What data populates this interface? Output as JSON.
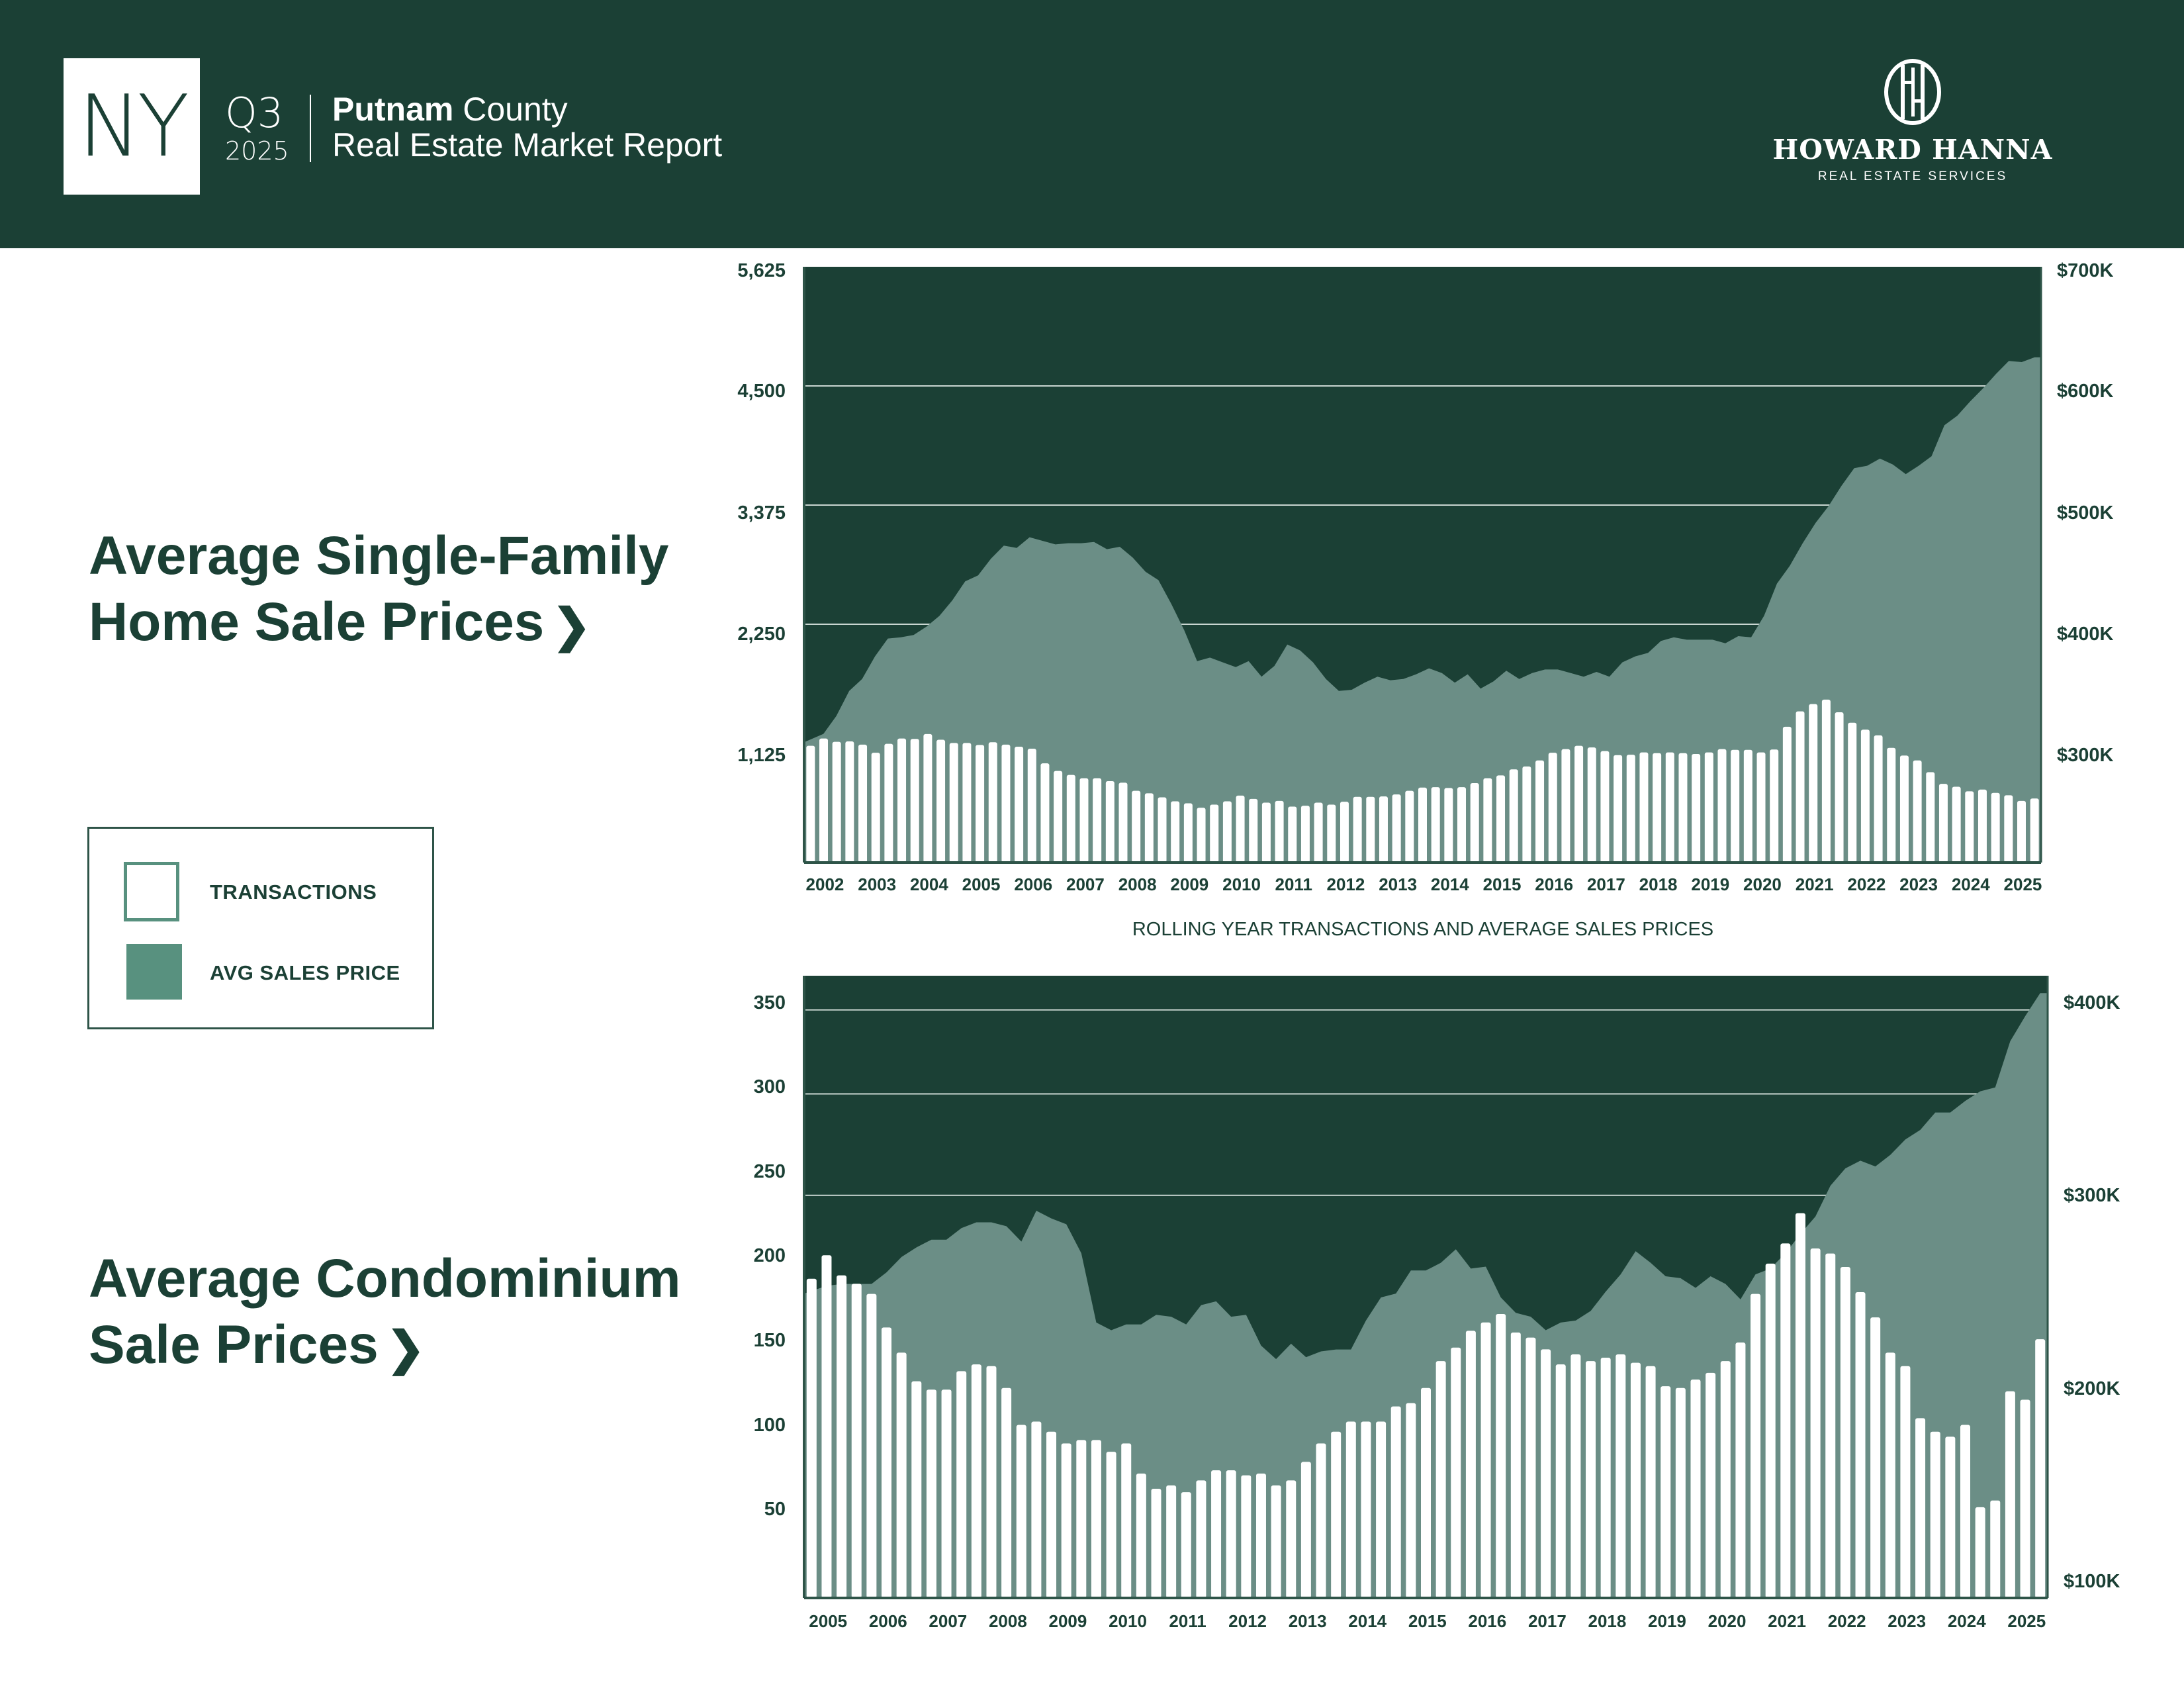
{
  "header": {
    "state": "NY",
    "quarter": "Q3",
    "year": "2025",
    "county_bold": "Putnam",
    "county_rest": " County",
    "report_title": "Real Estate Market Report",
    "brand_name": "HOWARD HANNA",
    "brand_sub": "REAL ESTATE SERVICES"
  },
  "sections": {
    "single_family_title_1": "Average Single-Family",
    "single_family_title_2": "Home Sale Prices",
    "condo_title_1": "Average Condominium",
    "condo_title_2": "Sale Prices",
    "chevron": "❯"
  },
  "legend": {
    "transactions": "TRANSACTIONS",
    "avg_price": "AVG SALES PRICE"
  },
  "colors": {
    "background_dark": "#1b4035",
    "area_fill": "#6b8e86",
    "bar_fill": "#ffffff",
    "legend_swatch": "#58917f",
    "text": "#1b4035"
  },
  "chart_data": [
    {
      "type": "bar+area",
      "title": "Average Single-Family Home Sale Prices",
      "caption": "ROLLING YEAR TRANSACTIONS AND AVERAGE SALES PRICES",
      "x_start": "2002 Q1",
      "x_step": "quarter",
      "x_tick_labels": [
        "2002",
        "2003",
        "2004",
        "2005",
        "2006",
        "2007",
        "2008",
        "2009",
        "2010",
        "2011",
        "2012",
        "2013",
        "2014",
        "2015",
        "2016",
        "2017",
        "2018",
        "2019",
        "2020",
        "2021",
        "2022",
        "2023",
        "2024",
        "2025"
      ],
      "left_axis": {
        "label": "Transactions",
        "ticks": [
          "5,625",
          "4,500",
          "3,375",
          "2,250",
          "1,125"
        ],
        "range": [
          0,
          5625
        ]
      },
      "right_axis": {
        "label": "Avg Sales Price",
        "ticks": [
          "$700K",
          "$600K",
          "$500K",
          "$400K",
          "$300K"
        ],
        "range": [
          200,
          700
        ],
        "unit": "K"
      },
      "gridlines_at": [
        4500,
        3375,
        2250
      ],
      "series": [
        {
          "name": "TRANSACTIONS",
          "kind": "bar",
          "axis": "left",
          "values": [
            1102,
            1171,
            1140,
            1144,
            1113,
            1037,
            1121,
            1171,
            1167,
            1213,
            1159,
            1129,
            1129,
            1110,
            1136,
            1113,
            1094,
            1075,
            937,
            865,
            827,
            796,
            796,
            769,
            754,
            677,
            654,
            616,
            578,
            559,
            517,
            547,
            578,
            632,
            601,
            566,
            582,
            528,
            536,
            566,
            547,
            574,
            620,
            620,
            624,
            643,
            677,
            708,
            712,
            704,
            712,
            750,
            796,
            823,
            880,
            907,
            964,
            1037,
            1071,
            1102,
            1087,
            1052,
            1014,
            1018,
            1040,
            1033,
            1040,
            1033,
            1025,
            1040,
            1071,
            1064,
            1064,
            1040,
            1067,
            1282,
            1427,
            1496,
            1538,
            1419,
            1320,
            1255,
            1201,
            1083,
            1010,
            964,
            853,
            743,
            716,
            673,
            689,
            658,
            635,
            582,
            605
          ]
        },
        {
          "name": "AVG SALES PRICE",
          "kind": "area",
          "axis": "right",
          "values": [
            301,
            308,
            323,
            344,
            354,
            373,
            388,
            389,
            391,
            398,
            407,
            420,
            436,
            441,
            455,
            466,
            464,
            473,
            470,
            467,
            468,
            468,
            469,
            463,
            465,
            456,
            444,
            437,
            417,
            395,
            369,
            372,
            368,
            364,
            369,
            356,
            365,
            383,
            378,
            368,
            354,
            344,
            345,
            351,
            356,
            353,
            354,
            358,
            363,
            359,
            351,
            358,
            346,
            352,
            361,
            354,
            359,
            362,
            362,
            359,
            356,
            360,
            356,
            368,
            373,
            376,
            386,
            389,
            387,
            387,
            387,
            384,
            390,
            389,
            407,
            434,
            449,
            468,
            485,
            499,
            516,
            531,
            533,
            539,
            534,
            526,
            533,
            541,
            567,
            575,
            587,
            598,
            610,
            621,
            620,
            624
          ]
        }
      ]
    },
    {
      "type": "bar+area",
      "title": "Average Condominium Sale Prices",
      "x_start": "2005 Q1",
      "x_step": "quarter",
      "x_tick_labels": [
        "2005",
        "2006",
        "2007",
        "2008",
        "2009",
        "2010",
        "2011",
        "2012",
        "2013",
        "2014",
        "2015",
        "2016",
        "2017",
        "2018",
        "2019",
        "2020",
        "2021",
        "2022",
        "2023",
        "2024",
        "2025"
      ],
      "left_axis": {
        "label": "Transactions",
        "ticks": [
          "350",
          "300",
          "250",
          "200",
          "150",
          "100",
          "50"
        ],
        "range": [
          0,
          370
        ]
      },
      "right_axis": {
        "label": "Avg Sales Price",
        "ticks": [
          "$400K",
          "$300K",
          "$200K",
          "$100K"
        ],
        "range": [
          91,
          414
        ],
        "unit": "K"
      },
      "gridlines_at_left": [
        350,
        300
      ],
      "gridlines_at_right": [
        300
      ],
      "series": [
        {
          "name": "TRANSACTIONS",
          "kind": "bar",
          "axis": "left",
          "values": [
            190,
            204,
            192,
            187,
            181,
            161,
            146,
            129,
            124,
            124,
            135,
            139,
            138,
            125,
            103,
            105,
            99,
            92,
            94,
            94,
            87,
            92,
            74,
            65,
            67,
            63,
            70,
            76,
            76,
            73,
            74,
            67,
            70,
            81,
            92,
            99,
            105,
            105,
            105,
            114,
            116,
            125,
            141,
            149,
            159,
            164,
            169,
            158,
            155,
            148,
            139,
            145,
            141,
            143,
            145,
            140,
            138,
            126,
            125,
            130,
            134,
            141,
            152,
            181,
            199,
            211,
            229,
            208,
            205,
            197,
            182,
            167,
            146,
            138,
            107,
            99,
            96,
            103,
            54,
            58,
            123,
            118,
            154
          ]
        },
        {
          "name": "AVG SALES PRICE",
          "kind": "area",
          "axis": "right",
          "values": [
            249,
            253,
            254,
            254,
            254,
            260,
            268,
            273,
            277,
            277,
            283,
            286,
            286,
            284,
            276,
            292,
            288,
            285,
            270,
            234,
            230,
            233,
            233,
            238,
            237,
            233,
            243,
            245,
            237,
            238,
            222,
            215,
            223,
            216,
            219,
            220,
            220,
            235,
            247,
            249,
            261,
            261,
            265,
            272,
            262,
            263,
            247,
            239,
            237,
            230,
            234,
            235,
            240,
            250,
            259,
            271,
            265,
            258,
            257,
            252,
            258,
            254,
            246,
            259,
            262,
            270,
            280,
            289,
            305,
            314,
            318,
            315,
            321,
            329,
            334,
            343,
            343,
            349,
            354,
            356,
            380,
            393,
            405
          ]
        }
      ]
    }
  ]
}
